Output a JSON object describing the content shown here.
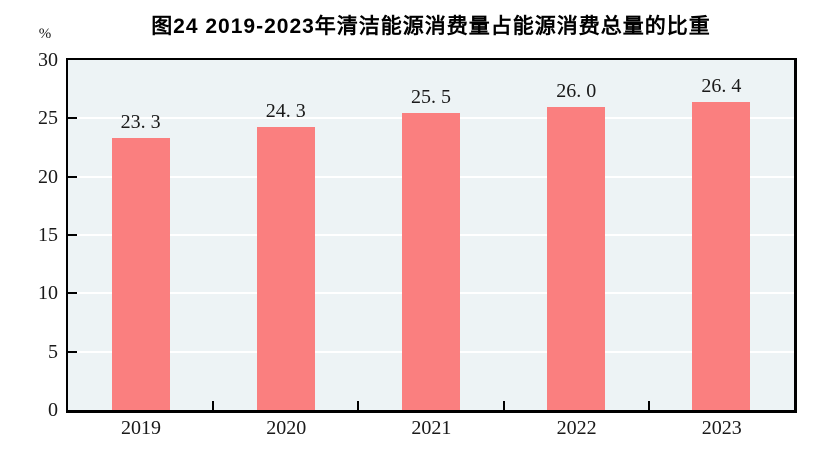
{
  "chart_data": {
    "type": "bar",
    "title": "图24  2019-2023年清洁能源消费量占能源消费总量的比重",
    "unit_label": "%",
    "categories": [
      "2019",
      "2020",
      "2021",
      "2022",
      "2023"
    ],
    "values": [
      23.3,
      24.3,
      25.5,
      26.0,
      26.4
    ],
    "value_labels": [
      "23. 3",
      "24. 3",
      "25. 5",
      "26. 0",
      "26. 4"
    ],
    "ylabel": "%",
    "xlabel": "",
    "ylim": [
      0,
      30
    ],
    "y_ticks": [
      0,
      5,
      10,
      15,
      20,
      25,
      30
    ],
    "grid_values": [
      5,
      10,
      15,
      20,
      25
    ],
    "grid_on": true,
    "legend": "none",
    "bar_color": "#fa7f7f",
    "plot_background": "#edf3f5",
    "grid_color": "#ffffff",
    "axis_color": "#000000",
    "text_color": "#1a1a1a"
  }
}
